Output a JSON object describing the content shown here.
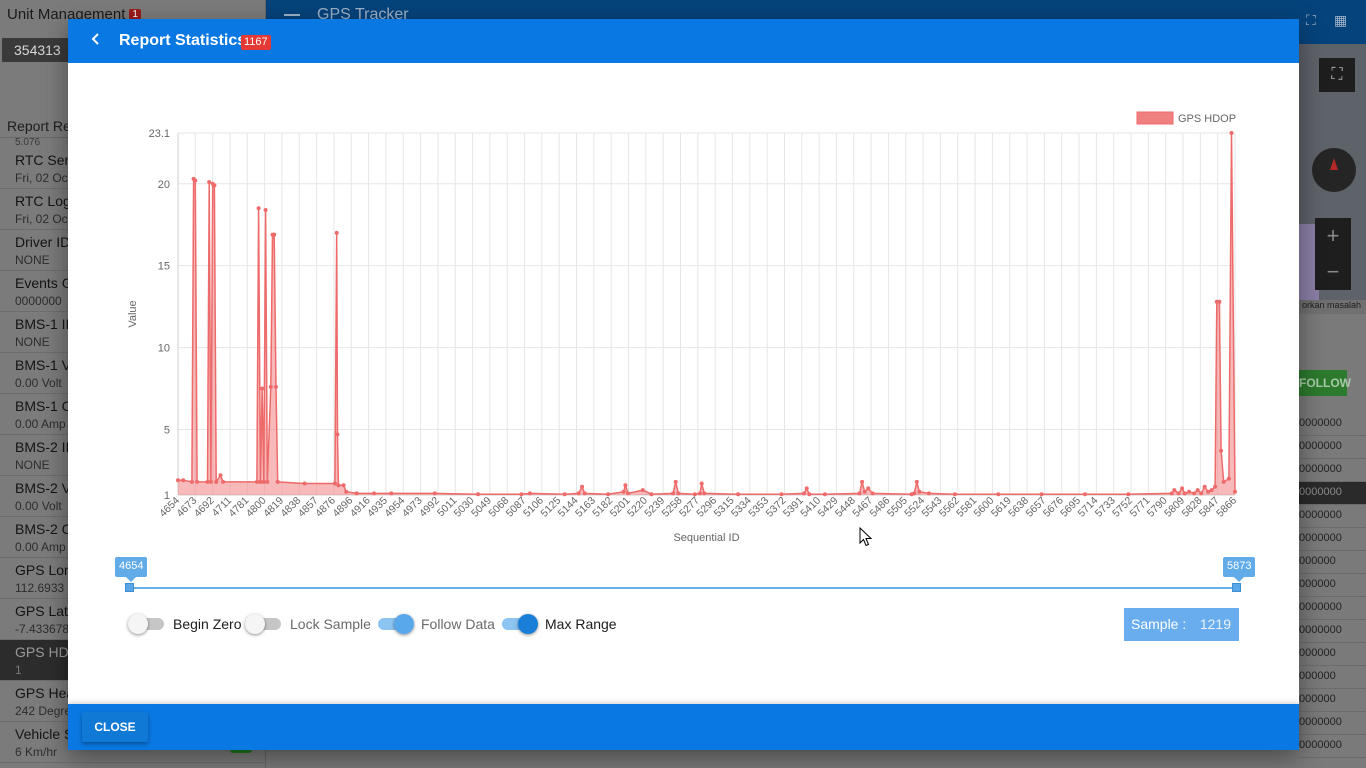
{
  "background": {
    "unit_title": "Unit Management",
    "unit_badge": "1",
    "unit_value": "354313",
    "app_title": "GPS Tracker",
    "report_tab": "Report Re",
    "scroll_text": "5.076",
    "items": [
      {
        "label": "RTC Sen",
        "value": "Fri, 02 Oc"
      },
      {
        "label": "RTC Log",
        "value": "Fri, 02 Oc"
      },
      {
        "label": "Driver ID",
        "value": "NONE"
      },
      {
        "label": "Events G",
        "value": "0000000"
      },
      {
        "label": "BMS-1 ID",
        "value": "NONE"
      },
      {
        "label": "BMS-1 V",
        "value": "0.00 Volt"
      },
      {
        "label": "BMS-1 C",
        "value": "0.00 Amp"
      },
      {
        "label": "BMS-2 ID",
        "value": "NONE"
      },
      {
        "label": "BMS-2 V",
        "value": "0.00 Volt"
      },
      {
        "label": "BMS-2 C",
        "value": "0.00 Amp"
      },
      {
        "label": "GPS Lon",
        "value": "112.6933"
      },
      {
        "label": "GPS Lati",
        "value": "-7.433678"
      },
      {
        "label": "GPS HDO",
        "value": "1"
      },
      {
        "label": "GPS Hea",
        "value": "242 Degre"
      },
      {
        "label": "Vehicle S",
        "value": "6 Km/hr"
      }
    ],
    "map_attribution": "orkan masalah",
    "follow_label": "FOLLOW",
    "right_values": [
      "0000000",
      "0000000",
      "0000000",
      "0000000",
      "0000000",
      "0000000",
      "000000",
      "000000",
      "0000000",
      "0000000",
      "000000",
      "000000",
      "000000",
      "0000000",
      "0000000"
    ]
  },
  "modal": {
    "title": "Report Statistics",
    "count_badge": "1167",
    "back_icon": "chevron-left-icon",
    "close_label": "CLOSE",
    "range": {
      "min_label": "4654",
      "max_label": "5873"
    },
    "toggles": [
      {
        "label": "Begin Zero",
        "on": false
      },
      {
        "label": "Lock Sample",
        "on": false
      },
      {
        "label": "Follow Data",
        "on": true
      },
      {
        "label": "Max Range",
        "on": true
      }
    ],
    "sample_label": "Sample :",
    "sample_value": "1219"
  },
  "chart_data": {
    "type": "area",
    "xlabel": "Sequential ID",
    "ylabel": "Value",
    "legend": "GPS HDOP",
    "legend_position": "top-right",
    "grid": true,
    "xlim": [
      4654,
      5873
    ],
    "ylim": [
      1,
      23.1
    ],
    "y_ticks": [
      1,
      5,
      10,
      15,
      20,
      23.1
    ],
    "x_tick_labels": [
      "4654",
      "4673",
      "4692",
      "4711",
      "4781",
      "4800",
      "4819",
      "4838",
      "4857",
      "4876",
      "4896",
      "4916",
      "4935",
      "4954",
      "4973",
      "4992",
      "5011",
      "5030",
      "5049",
      "5068",
      "5087",
      "5106",
      "5125",
      "5144",
      "5163",
      "5182",
      "5201",
      "5220",
      "5239",
      "5258",
      "5277",
      "5296",
      "5315",
      "5334",
      "5353",
      "5372",
      "5391",
      "5410",
      "5429",
      "5448",
      "5467",
      "5486",
      "5505",
      "5524",
      "5543",
      "5562",
      "5581",
      "5600",
      "5619",
      "5638",
      "5657",
      "5676",
      "5695",
      "5714",
      "5733",
      "5752",
      "5771",
      "5790",
      "5809",
      "5828",
      "5847",
      "5866"
    ],
    "series": [
      {
        "name": "GPS HDOP",
        "color": "#f07f7f",
        "points": [
          [
            4654,
            1.9
          ],
          [
            4660,
            1.9
          ],
          [
            4670,
            1.8
          ],
          [
            4672,
            20.3
          ],
          [
            4674,
            20.2
          ],
          [
            4676,
            1.8
          ],
          [
            4688,
            1.8
          ],
          [
            4690,
            20.1
          ],
          [
            4692,
            1.8
          ],
          [
            4694,
            20.0
          ],
          [
            4696,
            19.9
          ],
          [
            4698,
            1.8
          ],
          [
            4703,
            2.2
          ],
          [
            4706,
            1.8
          ],
          [
            4745,
            1.8
          ],
          [
            4747,
            18.5
          ],
          [
            4749,
            1.8
          ],
          [
            4751,
            7.5
          ],
          [
            4753,
            1.8
          ],
          [
            4755,
            18.4
          ],
          [
            4757,
            1.8
          ],
          [
            4761,
            7.6
          ],
          [
            4763,
            16.9
          ],
          [
            4765,
            16.9
          ],
          [
            4767,
            7.6
          ],
          [
            4769,
            1.8
          ],
          [
            4800,
            1.7
          ],
          [
            4835,
            1.7
          ],
          [
            4837,
            17.0
          ],
          [
            4838,
            4.7
          ],
          [
            4839,
            1.6
          ],
          [
            4845,
            1.6
          ],
          [
            4848,
            1.2
          ],
          [
            4860,
            1.1
          ],
          [
            4880,
            1.1
          ],
          [
            4900,
            1.1
          ],
          [
            4950,
            1.1
          ],
          [
            5000,
            1.05
          ],
          [
            5050,
            1.05
          ],
          [
            5060,
            1.1
          ],
          [
            5100,
            1.05
          ],
          [
            5116,
            1.1
          ],
          [
            5120,
            1.5
          ],
          [
            5123,
            1.1
          ],
          [
            5150,
            1.05
          ],
          [
            5168,
            1.2
          ],
          [
            5170,
            1.6
          ],
          [
            5173,
            1.1
          ],
          [
            5190,
            1.3
          ],
          [
            5200,
            1.05
          ],
          [
            5225,
            1.1
          ],
          [
            5228,
            1.8
          ],
          [
            5231,
            1.1
          ],
          [
            5250,
            1.05
          ],
          [
            5256,
            1.1
          ],
          [
            5258,
            1.7
          ],
          [
            5261,
            1.1
          ],
          [
            5300,
            1.05
          ],
          [
            5350,
            1.05
          ],
          [
            5376,
            1.1
          ],
          [
            5379,
            1.4
          ],
          [
            5382,
            1.05
          ],
          [
            5400,
            1.05
          ],
          [
            5440,
            1.1
          ],
          [
            5443,
            1.8
          ],
          [
            5446,
            1.2
          ],
          [
            5450,
            1.4
          ],
          [
            5455,
            1.1
          ],
          [
            5500,
            1.05
          ],
          [
            5503,
            1.1
          ],
          [
            5506,
            1.8
          ],
          [
            5509,
            1.2
          ],
          [
            5520,
            1.1
          ],
          [
            5550,
            1.05
          ],
          [
            5600,
            1.05
          ],
          [
            5650,
            1.05
          ],
          [
            5700,
            1.05
          ],
          [
            5750,
            1.05
          ],
          [
            5800,
            1.1
          ],
          [
            5803,
            1.3
          ],
          [
            5808,
            1.1
          ],
          [
            5812,
            1.4
          ],
          [
            5815,
            1.1
          ],
          [
            5820,
            1.2
          ],
          [
            5826,
            1.1
          ],
          [
            5830,
            1.3
          ],
          [
            5834,
            1.1
          ],
          [
            5838,
            1.5
          ],
          [
            5842,
            1.2
          ],
          [
            5846,
            1.3
          ],
          [
            5850,
            1.5
          ],
          [
            5852,
            12.8
          ],
          [
            5855,
            12.8
          ],
          [
            5857,
            3.7
          ],
          [
            5860,
            1.8
          ],
          [
            5866,
            2.0
          ],
          [
            5869,
            23.1
          ],
          [
            5873,
            1.2
          ]
        ]
      }
    ]
  }
}
